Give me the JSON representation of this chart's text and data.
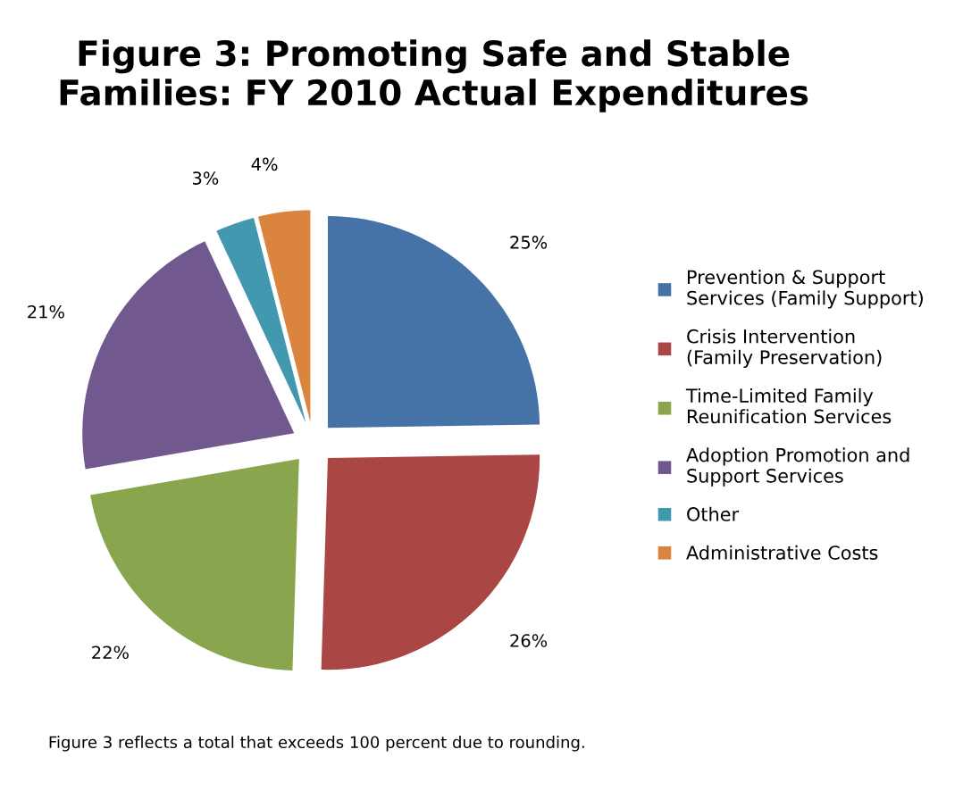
{
  "chart_data": {
    "type": "pie",
    "title": "Figure 3: Promoting Safe and Stable Families: FY 2010 Actual Expenditures",
    "categories": [
      "Prevention & Support Services (Family Support)",
      "Crisis Intervention (Family Preservation)",
      "Time-Limited Family Reunification Services",
      "Adoption Promotion and Support Services",
      "Other",
      "Administrative Costs"
    ],
    "values": [
      25,
      26,
      22,
      21,
      3,
      4
    ],
    "value_labels": [
      "25%",
      "26%",
      "22%",
      "21%",
      "3%",
      "4%"
    ],
    "colors": [
      "#4572a7",
      "#aa4643",
      "#89a54e",
      "#71588f",
      "#4198af",
      "#db843d"
    ],
    "legend": "right",
    "annotations": [
      "Figure 3 reflects a total that exceeds 100 percent due to rounding."
    ]
  }
}
